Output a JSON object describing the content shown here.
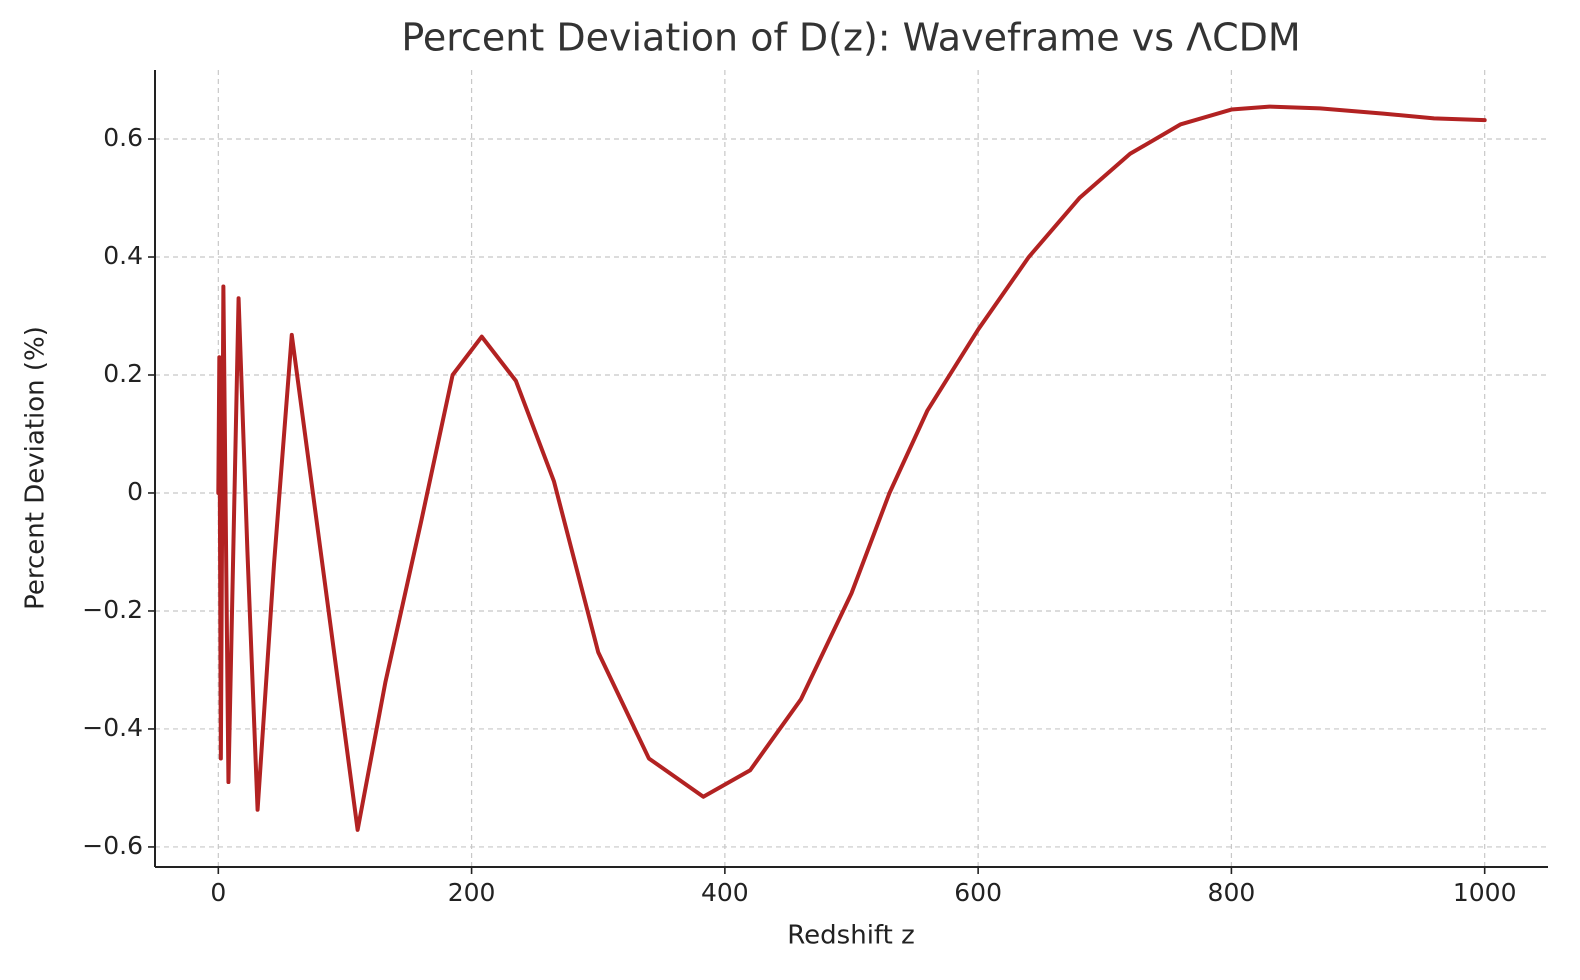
{
  "chart_data": {
    "type": "line",
    "title": "Percent Deviation of D(z): Waveframe vs ΛCDM",
    "x_label": "Redshift z",
    "y_label": "Percent Deviation (%)",
    "x": [
      0,
      0.8,
      2,
      4,
      8,
      12,
      16,
      23,
      31,
      44,
      58,
      84,
      110,
      132,
      160,
      185,
      208,
      235,
      265,
      300,
      340,
      383,
      420,
      460,
      500,
      530,
      560,
      600,
      640,
      680,
      720,
      760,
      800,
      830,
      870,
      920,
      960,
      1000
    ],
    "series": [
      {
        "name": "Percent Deviation",
        "color": "#b22222",
        "values": [
          0,
          0.23,
          -0.45,
          0.35,
          -0.49,
          -0.08,
          0.33,
          -0.1,
          -0.537,
          -0.12,
          0.268,
          -0.15,
          -0.571,
          -0.32,
          -0.05,
          0.2,
          0.265,
          0.19,
          0.02,
          -0.27,
          -0.45,
          -0.515,
          -0.47,
          -0.35,
          -0.17,
          0.0,
          0.14,
          0.277,
          0.4,
          0.5,
          0.575,
          0.625,
          0.65,
          0.655,
          0.652,
          0.643,
          0.635,
          0.632
        ]
      }
    ],
    "xlim": [
      -50,
      1050
    ],
    "ylim": [
      -0.634,
      0.717
    ],
    "xticks": [
      0,
      200,
      400,
      600,
      800,
      1000
    ],
    "yticks": [
      {
        "value": -0.6,
        "label": "−0.6"
      },
      {
        "value": -0.4,
        "label": "−0.4"
      },
      {
        "value": -0.2,
        "label": "−0.2"
      },
      0.0,
      0.2,
      0.4,
      0.6
    ],
    "grid": true
  }
}
